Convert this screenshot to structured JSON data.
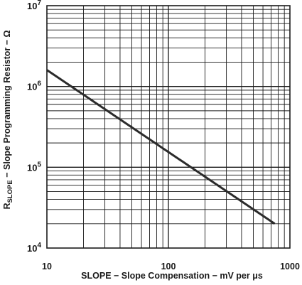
{
  "chart_data": {
    "type": "line",
    "title": "",
    "xlabel": "SLOPE − Slope Compensation − mV per μs",
    "ylabel": {
      "prefix": "R",
      "subscript": "SLOPE",
      "rest": " − Slope Programming Resistor  − Ω"
    },
    "x_scale": "log",
    "y_scale": "log",
    "xlim": [
      10,
      1000
    ],
    "ylim": [
      10000,
      10000000
    ],
    "x_ticks": [
      {
        "value": 10,
        "label": "10"
      },
      {
        "value": 100,
        "label": "100"
      },
      {
        "value": 1000,
        "label": "1000"
      }
    ],
    "y_ticks": [
      {
        "value": 10000,
        "base": "10",
        "exp": "4"
      },
      {
        "value": 100000,
        "base": "10",
        "exp": "5"
      },
      {
        "value": 1000000,
        "base": "10",
        "exp": "6"
      },
      {
        "value": 10000000,
        "base": "10",
        "exp": "7"
      }
    ],
    "grid": true,
    "legend": "none",
    "line_color": "#2b2b2b",
    "series": [
      {
        "values": [
          {
            "x": 10,
            "y": 1600000
          },
          {
            "x": 750,
            "y": 20000
          }
        ]
      }
    ]
  }
}
